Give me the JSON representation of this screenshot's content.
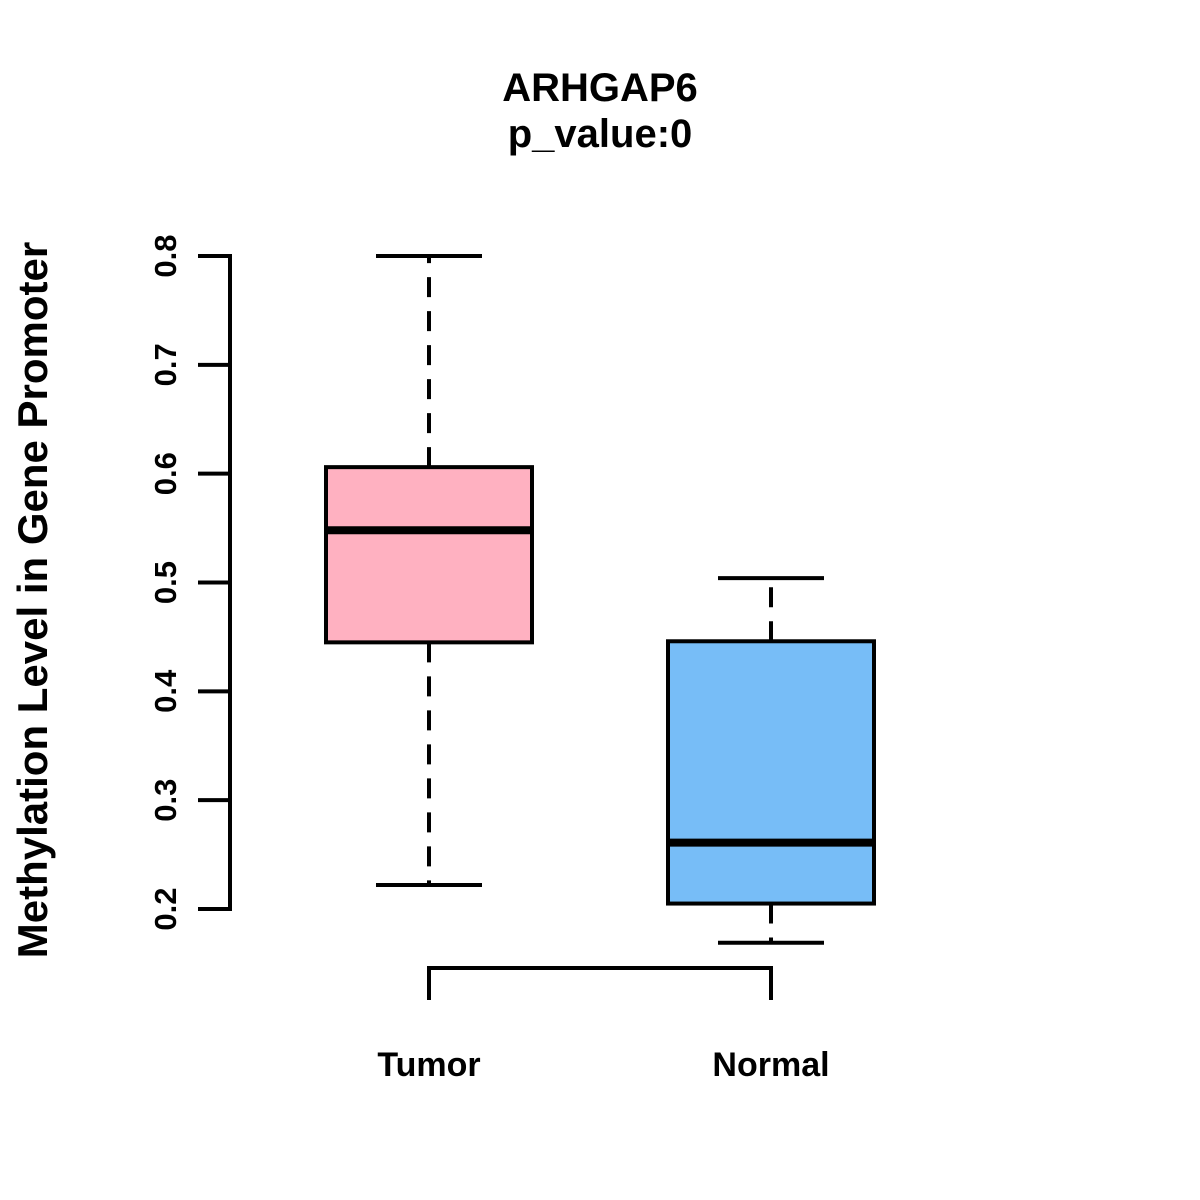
{
  "chart_data": {
    "type": "boxplot",
    "title": "ARHGAP6",
    "subtitle": "p_value:0",
    "ylabel": "Methylation Level in Gene Promoter",
    "xlabel": "",
    "ylim": [
      0.2,
      0.8
    ],
    "yticks": [
      0.2,
      0.3,
      0.4,
      0.5,
      0.6,
      0.7,
      0.8
    ],
    "grid": false,
    "legend": "none",
    "categories": [
      "Tumor",
      "Normal"
    ],
    "series": [
      {
        "name": "Tumor",
        "fill_color": "#FFB1C1",
        "whisker_low": 0.222,
        "q1": 0.445,
        "median": 0.548,
        "q3": 0.606,
        "whisker_high": 0.8
      },
      {
        "name": "Normal",
        "fill_color": "#77BDF7",
        "whisker_low": 0.169,
        "q1": 0.205,
        "median": 0.261,
        "q3": 0.446,
        "whisker_high": 0.504
      }
    ],
    "line_color": "#000000",
    "text_color": "#000000",
    "background_color": "#FFFFFF"
  }
}
